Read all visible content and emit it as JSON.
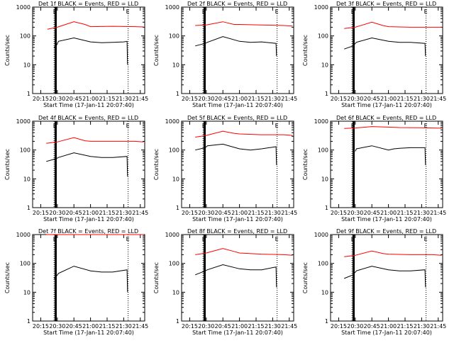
{
  "chart_data": [
    {
      "type": "line",
      "title": "Det 1f BLACK = Events, RED = LLD",
      "det": 1,
      "ylabel": "Counts/sec",
      "xlabel": "Start Time (17-Jan-11 20:07:40)",
      "xticks": [
        "20:15",
        "20:30",
        "20:45",
        "21:00",
        "21:15",
        "21:30",
        "21:45"
      ],
      "yticks": [
        "1",
        "10",
        "100",
        "1000"
      ],
      "yscale": "log",
      "ylim": [
        1,
        1000
      ],
      "marker_E": "E",
      "solid_lines": [
        "20:28",
        "20:29"
      ],
      "dotted_lines": [
        "20:27",
        "21:34"
      ],
      "series": [
        {
          "name": "BLACK",
          "color": "#000000",
          "values": [
            [
              20.27,
              40
            ],
            [
              20.29,
              45
            ],
            [
              20.31,
              65
            ],
            [
              20.45,
              85
            ],
            [
              21.0,
              62
            ],
            [
              21.1,
              58
            ],
            [
              21.2,
              60
            ],
            [
              21.3,
              62
            ],
            [
              21.33,
              65
            ],
            [
              21.335,
              10
            ]
          ]
        },
        {
          "name": "RED",
          "color": "#ff0000",
          "values": [
            [
              20.21,
              170
            ],
            [
              20.3,
              200
            ],
            [
              20.45,
              310
            ],
            [
              20.55,
              250
            ],
            [
              21.0,
              210
            ],
            [
              21.2,
              215
            ],
            [
              21.4,
              210
            ],
            [
              21.48,
              205
            ]
          ]
        }
      ]
    },
    {
      "type": "line",
      "title": "Det 2f BLACK = Events, RED = LLD",
      "det": 2,
      "ylabel": "Counts/sec",
      "xlabel": "Start Time (17-Jan-11 20:07:40)",
      "xticks": [
        "20:15",
        "20:30",
        "20:45",
        "21:00",
        "21:15",
        "21:30",
        "21:45"
      ],
      "yticks": [
        "1",
        "10",
        "100",
        "1000"
      ],
      "yscale": "log",
      "ylim": [
        1,
        1000
      ],
      "marker_E": "E",
      "solid_lines": [
        "20:28",
        "20:29"
      ],
      "dotted_lines": [
        "20:27",
        "21:34"
      ],
      "series": [
        {
          "name": "BLACK",
          "color": "#000000",
          "values": [
            [
              20.2,
              45
            ],
            [
              20.29,
              55
            ],
            [
              20.31,
              60
            ],
            [
              20.45,
              95
            ],
            [
              21.0,
              65
            ],
            [
              21.1,
              60
            ],
            [
              21.2,
              62
            ],
            [
              21.33,
              55
            ],
            [
              21.335,
              20
            ]
          ]
        },
        {
          "name": "RED",
          "color": "#ff0000",
          "values": [
            [
              20.2,
              230
            ],
            [
              20.3,
              240
            ],
            [
              20.45,
              310
            ],
            [
              20.55,
              250
            ],
            [
              21.0,
              250
            ],
            [
              21.2,
              240
            ],
            [
              21.4,
              230
            ],
            [
              21.48,
              220
            ]
          ]
        }
      ]
    },
    {
      "type": "line",
      "title": "Det 3f BLACK = Events, RED = LLD",
      "det": 3,
      "ylabel": "Counts/sec",
      "xlabel": "Start Time (17-Jan-11 20:07:40)",
      "xticks": [
        "20:15",
        "20:30",
        "20:45",
        "21:00",
        "21:15",
        "21:30",
        "21:45"
      ],
      "yticks": [
        "1",
        "10",
        "100",
        "1000"
      ],
      "yscale": "log",
      "ylim": [
        1,
        1000
      ],
      "marker_E": "E",
      "solid_lines": [
        "20:28",
        "20:29"
      ],
      "dotted_lines": [
        "20:27",
        "21:34"
      ],
      "series": [
        {
          "name": "BLACK",
          "color": "#000000",
          "values": [
            [
              20.2,
              35
            ],
            [
              20.28,
              45
            ],
            [
              20.31,
              60
            ],
            [
              20.45,
              85
            ],
            [
              21.0,
              65
            ],
            [
              21.1,
              60
            ],
            [
              21.2,
              60
            ],
            [
              21.33,
              55
            ],
            [
              21.335,
              20
            ]
          ]
        },
        {
          "name": "RED",
          "color": "#ff0000",
          "values": [
            [
              20.2,
              180
            ],
            [
              20.3,
              200
            ],
            [
              20.45,
              300
            ],
            [
              20.55,
              230
            ],
            [
              21.0,
              210
            ],
            [
              21.2,
              200
            ],
            [
              21.4,
              200
            ],
            [
              21.48,
              200
            ]
          ]
        }
      ]
    },
    {
      "type": "line",
      "title": "Det 4f BLACK = Events, RED = LLD",
      "det": 4,
      "ylabel": "Counts/sec",
      "xlabel": "Start Time (17-Jan-11 20:07:40)",
      "xticks": [
        "20:15",
        "20:30",
        "20:45",
        "21:00",
        "21:15",
        "21:30",
        "21:45"
      ],
      "yticks": [
        "1",
        "10",
        "100",
        "1000"
      ],
      "yscale": "log",
      "ylim": [
        1,
        1000
      ],
      "marker_E": "E",
      "solid_lines": [
        "20:28",
        "20:29"
      ],
      "dotted_lines": [
        "20:27",
        "21:34"
      ],
      "series": [
        {
          "name": "BLACK",
          "color": "#000000",
          "values": [
            [
              20.2,
              40
            ],
            [
              20.29,
              50
            ],
            [
              20.31,
              55
            ],
            [
              20.45,
              80
            ],
            [
              21.0,
              60
            ],
            [
              21.1,
              55
            ],
            [
              21.2,
              55
            ],
            [
              21.33,
              60
            ],
            [
              21.335,
              12
            ]
          ]
        },
        {
          "name": "RED",
          "color": "#ff0000",
          "values": [
            [
              20.2,
              170
            ],
            [
              20.3,
              190
            ],
            [
              20.45,
              270
            ],
            [
              20.55,
              210
            ],
            [
              21.0,
              200
            ],
            [
              21.2,
              200
            ],
            [
              21.4,
              200
            ],
            [
              21.48,
              190
            ]
          ]
        }
      ]
    },
    {
      "type": "line",
      "title": "Det 5f BLACK = Events, RED = LLD",
      "det": 5,
      "ylabel": "Counts/sec",
      "xlabel": "Start Time (17-Jan-11 20:07:40)",
      "xticks": [
        "20:15",
        "20:30",
        "20:45",
        "21:00",
        "21:15",
        "21:30",
        "21:45"
      ],
      "yticks": [
        "1",
        "10",
        "100",
        "1000"
      ],
      "yscale": "log",
      "ylim": [
        1,
        1000
      ],
      "marker_E": "E",
      "solid_lines": [
        "20:28",
        "20:29"
      ],
      "dotted_lines": [
        "20:27",
        "21:34"
      ],
      "series": [
        {
          "name": "BLACK",
          "color": "#000000",
          "values": [
            [
              20.2,
              100
            ],
            [
              20.29,
              120
            ],
            [
              20.31,
              140
            ],
            [
              20.45,
              160
            ],
            [
              21.0,
              110
            ],
            [
              21.1,
              100
            ],
            [
              21.2,
              110
            ],
            [
              21.33,
              130
            ],
            [
              21.335,
              30
            ]
          ]
        },
        {
          "name": "RED",
          "color": "#ff0000",
          "values": [
            [
              20.2,
              280
            ],
            [
              20.3,
              320
            ],
            [
              20.45,
              450
            ],
            [
              20.55,
              380
            ],
            [
              21.0,
              360
            ],
            [
              21.2,
              340
            ],
            [
              21.4,
              340
            ],
            [
              21.48,
              320
            ]
          ]
        }
      ]
    },
    {
      "type": "line",
      "title": "Det 6f BLACK = Events, RED = LLD",
      "det": 6,
      "ylabel": "Counts/sec",
      "xlabel": "Start Time (17-Jan-11 20:07:40)",
      "xticks": [
        "20:15",
        "20:30",
        "20:45",
        "21:00",
        "21:15",
        "21:30",
        "21:45"
      ],
      "yticks": [
        "1",
        "10",
        "100",
        "1000"
      ],
      "yscale": "log",
      "ylim": [
        1,
        1000
      ],
      "marker_E": "E",
      "solid_lines": [
        "20:28",
        "20:29"
      ],
      "dotted_lines": [
        "20:27",
        "21:34"
      ],
      "series": [
        {
          "name": "BLACK",
          "color": "#000000",
          "values": [
            [
              20.3,
              90
            ],
            [
              20.31,
              110
            ],
            [
              20.45,
              140
            ],
            [
              21.0,
              100
            ],
            [
              21.05,
              110
            ],
            [
              21.1,
              115
            ],
            [
              21.2,
              120
            ],
            [
              21.33,
              120
            ],
            [
              21.335,
              30
            ]
          ]
        },
        {
          "name": "RED",
          "color": "#ff0000",
          "values": [
            [
              20.2,
              560
            ],
            [
              20.3,
              580
            ],
            [
              20.45,
              650
            ],
            [
              21.0,
              620
            ],
            [
              21.1,
              600
            ],
            [
              21.3,
              590
            ],
            [
              21.48,
              570
            ]
          ]
        }
      ]
    },
    {
      "type": "line",
      "title": "Det 7f BLACK = Events, RED = LLD",
      "det": 7,
      "ylabel": "Counts/sec",
      "xlabel": "Start Time (17-Jan-11 20:07:40)",
      "xticks": [
        "20:15",
        "20:30",
        "20:45",
        "21:00",
        "21:15",
        "21:30",
        "21:45"
      ],
      "yticks": [
        "1",
        "10",
        "100",
        "1000"
      ],
      "yscale": "log",
      "ylim": [
        1,
        1000
      ],
      "marker_E": "E",
      "solid_lines": [
        "20:28",
        "20:29"
      ],
      "dotted_lines": [
        "20:27",
        "21:34"
      ],
      "series": [
        {
          "name": "BLACK",
          "color": "#000000",
          "values": [
            [
              20.27,
              30
            ],
            [
              20.29,
              35
            ],
            [
              20.31,
              45
            ],
            [
              20.45,
              80
            ],
            [
              21.0,
              55
            ],
            [
              21.1,
              50
            ],
            [
              21.2,
              50
            ],
            [
              21.33,
              60
            ],
            [
              21.335,
              10
            ]
          ]
        },
        {
          "name": "RED",
          "color": "#ff0000",
          "values": [
            [
              20.2,
              1000
            ],
            [
              20.3,
              1000
            ],
            [
              20.45,
              1000
            ],
            [
              21.0,
              1000
            ],
            [
              21.48,
              1000
            ]
          ]
        }
      ]
    },
    {
      "type": "line",
      "title": "Det 8f BLACK = Events, RED = LLD",
      "det": 8,
      "ylabel": "Counts/sec",
      "xlabel": "Start Time (17-Jan-11 20:07:40)",
      "xticks": [
        "20:15",
        "20:30",
        "20:45",
        "21:00",
        "21:15",
        "21:30",
        "21:45"
      ],
      "yticks": [
        "1",
        "10",
        "100",
        "1000"
      ],
      "yscale": "log",
      "ylim": [
        1,
        1000
      ],
      "marker_E": "E",
      "solid_lines": [
        "20:28",
        "20:29"
      ],
      "dotted_lines": [
        "20:27",
        "21:34"
      ],
      "series": [
        {
          "name": "BLACK",
          "color": "#000000",
          "values": [
            [
              20.2,
              40
            ],
            [
              20.29,
              55
            ],
            [
              20.31,
              60
            ],
            [
              20.45,
              90
            ],
            [
              21.0,
              65
            ],
            [
              21.1,
              60
            ],
            [
              21.2,
              60
            ],
            [
              21.33,
              75
            ],
            [
              21.335,
              15
            ]
          ]
        },
        {
          "name": "RED",
          "color": "#ff0000",
          "values": [
            [
              20.2,
              200
            ],
            [
              20.3,
              230
            ],
            [
              20.45,
              330
            ],
            [
              20.55,
              260
            ],
            [
              21.0,
              230
            ],
            [
              21.2,
              210
            ],
            [
              21.4,
              200
            ],
            [
              21.48,
              190
            ]
          ]
        }
      ]
    },
    {
      "type": "line",
      "title": "Det 9f BLACK = Events, RED = LLD",
      "det": 9,
      "ylabel": "Counts/sec",
      "xlabel": "Start Time (17-Jan-11 20:07:40)",
      "xticks": [
        "20:15",
        "20:30",
        "20:45",
        "21:00",
        "21:15",
        "21:30",
        "21:45"
      ],
      "yticks": [
        "1",
        "10",
        "100",
        "1000"
      ],
      "yscale": "log",
      "ylim": [
        1,
        1000
      ],
      "marker_E": "E",
      "solid_lines": [
        "20:28",
        "20:29"
      ],
      "dotted_lines": [
        "20:27",
        "21:34"
      ],
      "series": [
        {
          "name": "BLACK",
          "color": "#000000",
          "values": [
            [
              20.2,
              30
            ],
            [
              20.28,
              40
            ],
            [
              20.31,
              55
            ],
            [
              20.45,
              80
            ],
            [
              21.0,
              60
            ],
            [
              21.1,
              55
            ],
            [
              21.2,
              55
            ],
            [
              21.33,
              60
            ],
            [
              21.335,
              15
            ]
          ]
        },
        {
          "name": "RED",
          "color": "#ff0000",
          "values": [
            [
              20.2,
              170
            ],
            [
              20.3,
              190
            ],
            [
              20.45,
              270
            ],
            [
              20.55,
              220
            ],
            [
              21.0,
              210
            ],
            [
              21.2,
              200
            ],
            [
              21.4,
              200
            ],
            [
              21.48,
              190
            ]
          ]
        }
      ]
    }
  ]
}
